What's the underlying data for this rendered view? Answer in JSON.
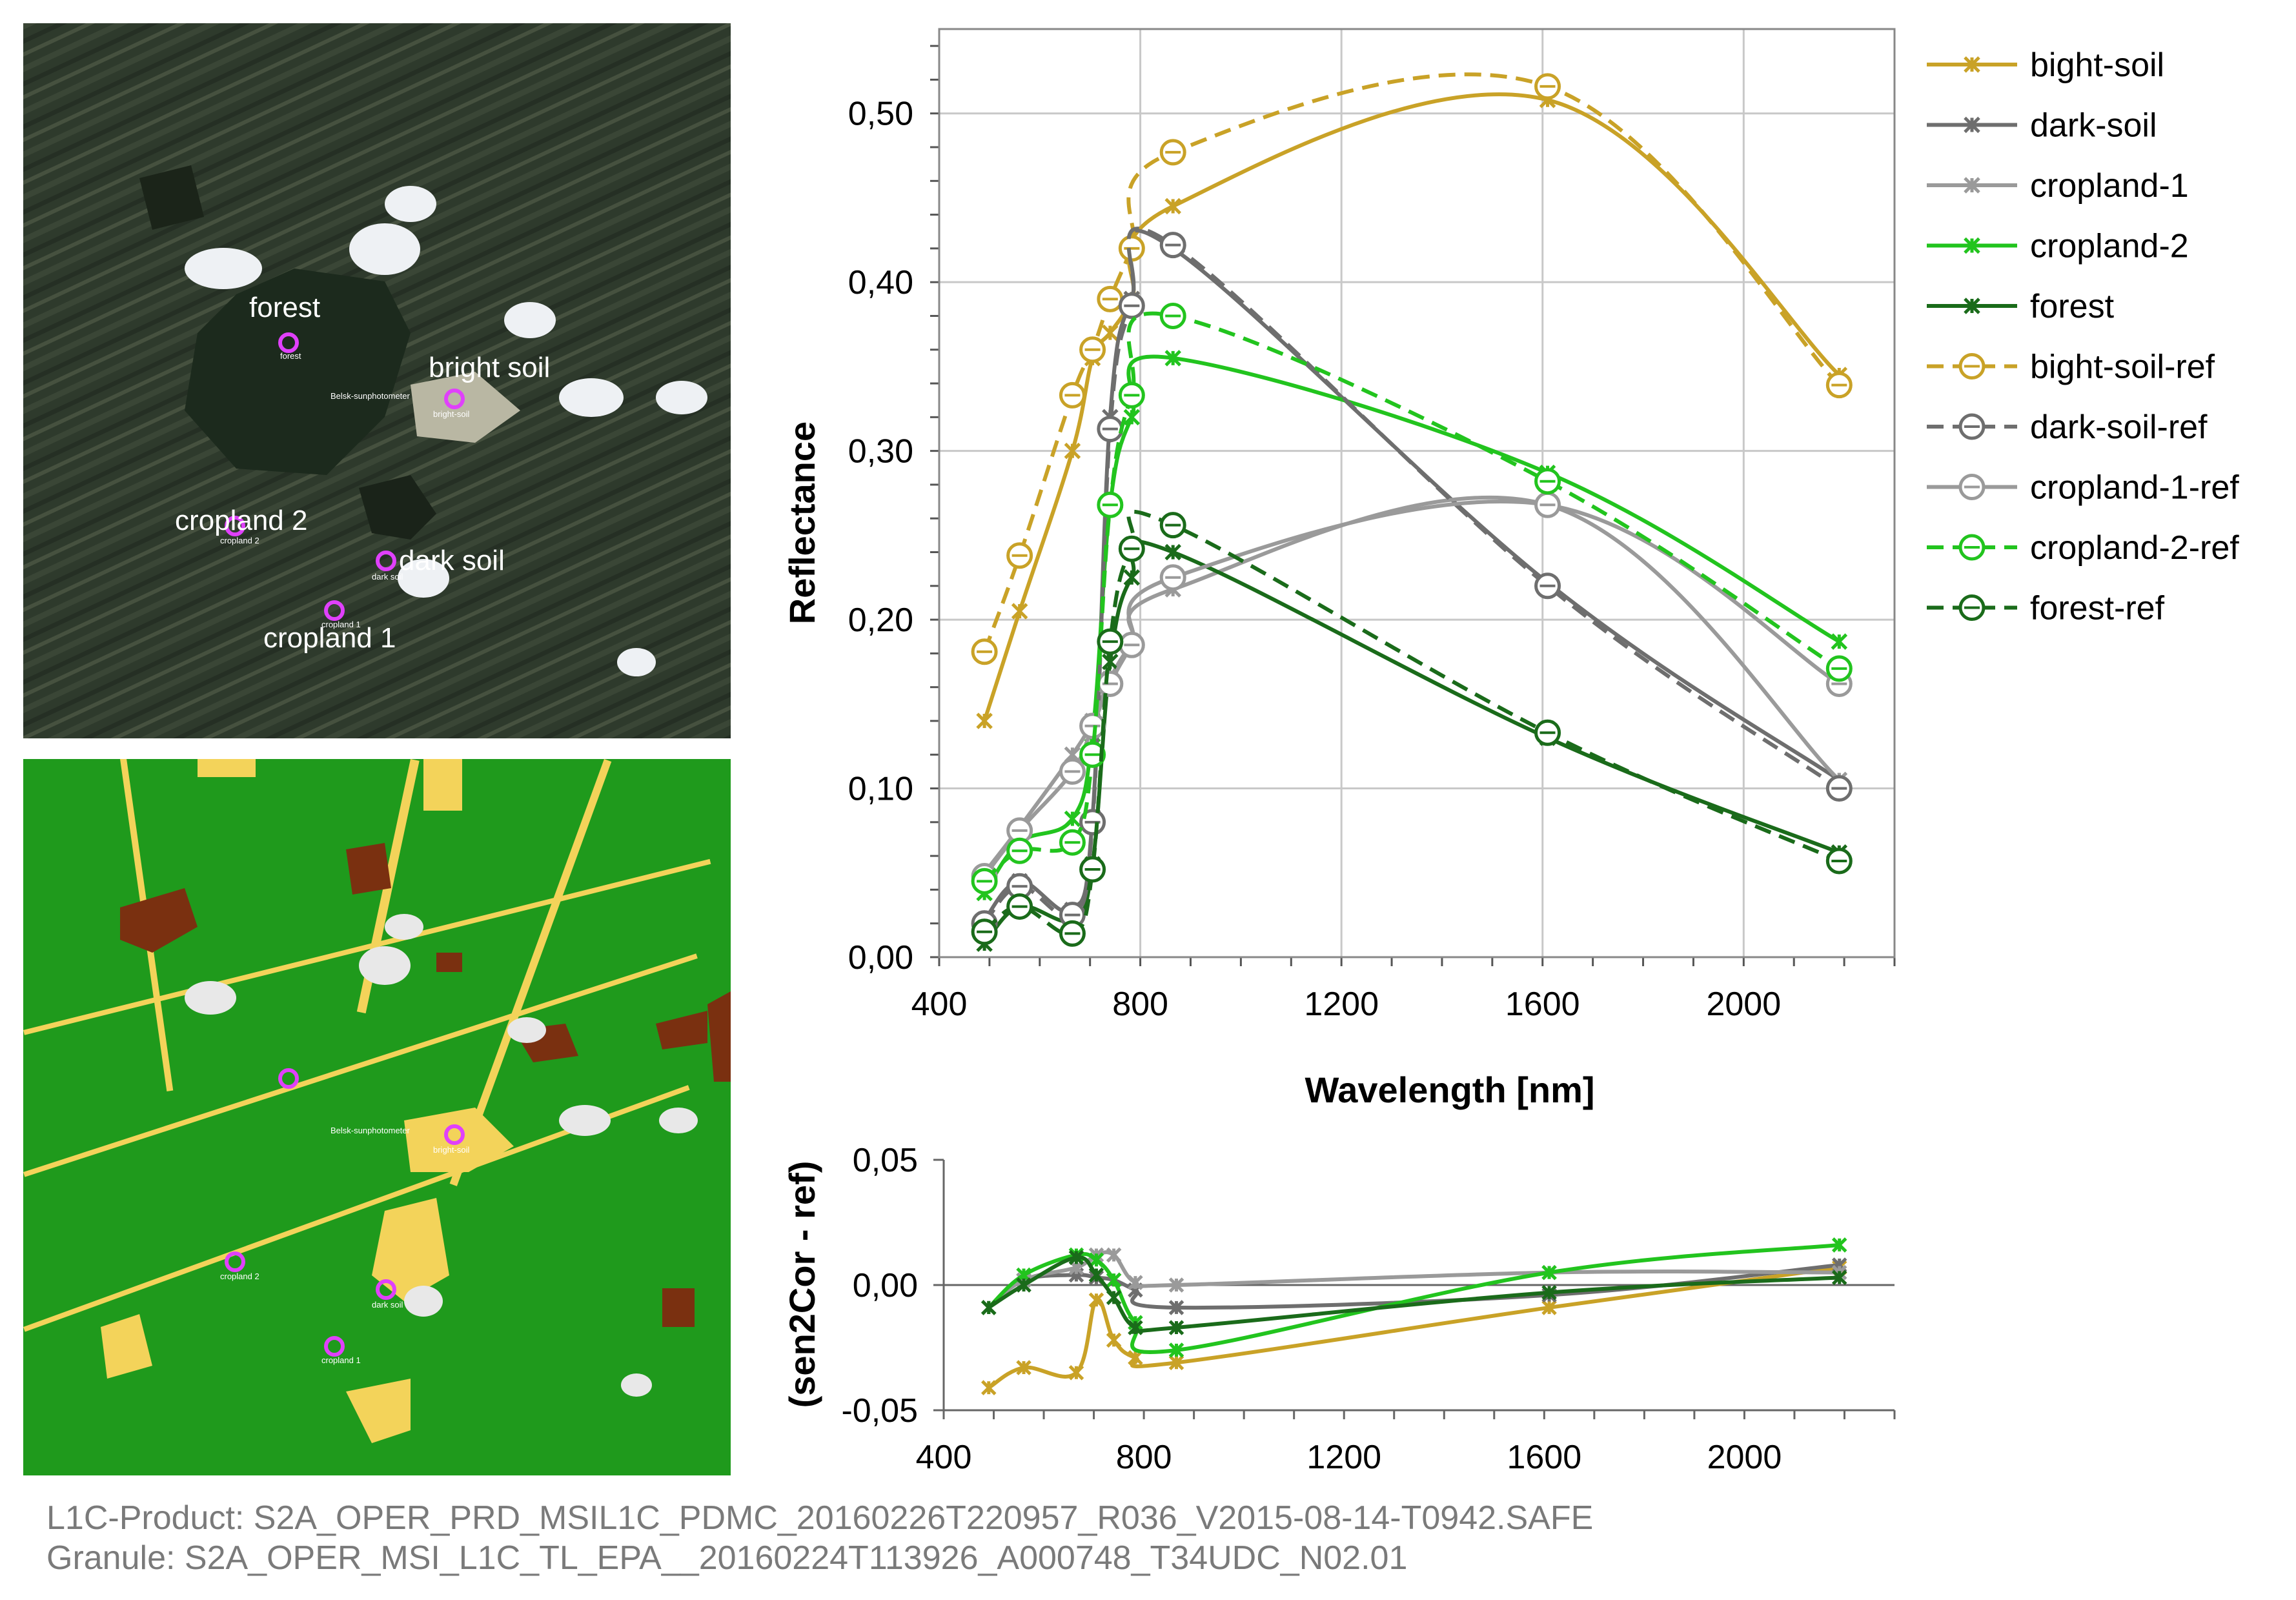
{
  "satellite_panel": {
    "labels": [
      "forest",
      "bright soil",
      "cropland 2",
      "dark soil",
      "cropland 1"
    ],
    "small_labels": [
      "Belsk-sunphotometer",
      "bright-soil",
      "dark soil",
      "cropland 2",
      "cropland 1",
      "forest"
    ]
  },
  "classification_panel": {
    "small_labels": [
      "Belsk-sunphotometer",
      "bright-soil",
      "cropland 2",
      "dark soil",
      "cropland 1"
    ]
  },
  "colors": {
    "bright_soil": "#c9a227",
    "dark_soil": "#6e6e6e",
    "cropland_1": "#9a9a9a",
    "cropland_2": "#22c41e",
    "forest": "#1a6b1a",
    "vegetation_class": "#1f9a1c",
    "soil_class": "#f3d35a",
    "dark_class": "#7a3010",
    "cloud_class": "#e8e8e8"
  },
  "chart_data": [
    {
      "type": "line",
      "xlabel": "Wavelength [nm]",
      "ylabel": "Reflectance",
      "xlim": [
        400,
        2300
      ],
      "ylim": [
        0,
        0.55
      ],
      "xticks": [
        "400",
        "800",
        "1200",
        "1600",
        "2000"
      ],
      "yticks": [
        "0,00",
        "0,10",
        "0,20",
        "0,30",
        "0,40",
        "0,50"
      ],
      "grid": true,
      "legend_position": "right",
      "x": [
        490,
        560,
        665,
        705,
        740,
        783,
        865,
        1610,
        2190
      ],
      "series": [
        {
          "name": "bight-soil",
          "color": "#c9a227",
          "style": "solid",
          "marker": "x",
          "values": [
            0.14,
            0.205,
            0.3,
            0.355,
            0.37,
            0.39,
            0.445,
            0.508,
            0.345
          ]
        },
        {
          "name": "dark-soil",
          "color": "#6e6e6e",
          "style": "solid",
          "marker": "x",
          "values": [
            0.022,
            0.045,
            0.028,
            0.083,
            0.32,
            0.39,
            0.42,
            0.222,
            0.105
          ]
        },
        {
          "name": "cropland-1",
          "color": "#9a9a9a",
          "style": "solid",
          "marker": "x",
          "values": [
            0.05,
            0.077,
            0.12,
            0.14,
            0.165,
            0.186,
            0.218,
            0.268,
            0.105
          ]
        },
        {
          "name": "cropland-2",
          "color": "#22c41e",
          "style": "solid",
          "marker": "x",
          "values": [
            0.038,
            0.068,
            0.082,
            0.132,
            0.268,
            0.32,
            0.355,
            0.287,
            0.187
          ]
        },
        {
          "name": "forest",
          "color": "#1a6b1a",
          "style": "solid",
          "marker": "x",
          "values": [
            0.008,
            0.03,
            0.022,
            0.055,
            0.175,
            0.225,
            0.24,
            0.13,
            0.062
          ]
        },
        {
          "name": "bight-soil-ref",
          "color": "#c9a227",
          "style": "dashed",
          "marker": "o",
          "values": [
            0.181,
            0.238,
            0.333,
            0.36,
            0.39,
            0.42,
            0.477,
            0.516,
            0.339
          ]
        },
        {
          "name": "dark-soil-ref",
          "color": "#6e6e6e",
          "style": "dashed",
          "marker": "o",
          "values": [
            0.02,
            0.042,
            0.025,
            0.08,
            0.313,
            0.386,
            0.422,
            0.22,
            0.1
          ]
        },
        {
          "name": "cropland-1-ref",
          "color": "#9a9a9a",
          "style": "solid",
          "marker": "o",
          "values": [
            0.048,
            0.075,
            0.11,
            0.137,
            0.162,
            0.185,
            0.225,
            0.268,
            0.162
          ]
        },
        {
          "name": "cropland-2-ref",
          "color": "#22c41e",
          "style": "dashed",
          "marker": "o",
          "values": [
            0.045,
            0.063,
            0.068,
            0.12,
            0.268,
            0.333,
            0.38,
            0.282,
            0.171
          ]
        },
        {
          "name": "forest-ref",
          "color": "#1a6b1a",
          "style": "dashed",
          "marker": "o",
          "values": [
            0.015,
            0.03,
            0.014,
            0.052,
            0.187,
            0.242,
            0.256,
            0.133,
            0.057
          ]
        }
      ]
    },
    {
      "type": "line",
      "xlabel": "",
      "ylabel": "(sen2Cor - ref)",
      "xlim": [
        400,
        2300
      ],
      "ylim": [
        -0.05,
        0.05
      ],
      "xticks": [
        "400",
        "800",
        "1200",
        "1600",
        "2000"
      ],
      "yticks": [
        "-0,05",
        "0,00",
        "0,05"
      ],
      "grid": false,
      "x": [
        490,
        560,
        665,
        705,
        740,
        783,
        865,
        1610,
        2190
      ],
      "series": [
        {
          "name": "bight-soil",
          "color": "#c9a227",
          "values": [
            -0.041,
            -0.033,
            -0.035,
            -0.006,
            -0.022,
            -0.029,
            -0.031,
            -0.009,
            0.007
          ]
        },
        {
          "name": "dark-soil",
          "color": "#6e6e6e",
          "values": [
            -0.009,
            0.002,
            0.004,
            0.003,
            0.002,
            -0.002,
            -0.009,
            -0.004,
            0.008
          ]
        },
        {
          "name": "cropland-1",
          "color": "#9a9a9a",
          "values": [
            -0.009,
            0.002,
            0.007,
            0.012,
            0.012,
            0.001,
            0.0,
            0.005,
            0.005
          ]
        },
        {
          "name": "cropland-2",
          "color": "#22c41e",
          "values": [
            -0.009,
            0.004,
            0.012,
            0.01,
            0.002,
            -0.015,
            -0.026,
            0.005,
            0.016
          ]
        },
        {
          "name": "forest",
          "color": "#1a6b1a",
          "values": [
            -0.009,
            0.0,
            0.011,
            0.004,
            -0.005,
            -0.017,
            -0.017,
            -0.003,
            0.003
          ]
        }
      ]
    }
  ],
  "footer": {
    "product": "L1C-Product: S2A_OPER_PRD_MSIL1C_PDMC_20160226T220957_R036_V2015-08-14-T0942.SAFE",
    "granule": "Granule: S2A_OPER_MSI_L1C_TL_EPA__20160224T113926_A000748_T34UDC_N02.01"
  }
}
